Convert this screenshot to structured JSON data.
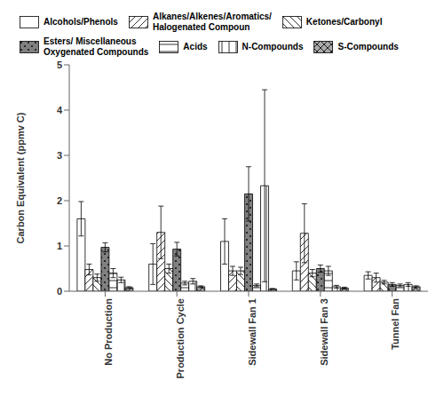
{
  "chart_data": {
    "type": "bar",
    "categories": [
      "No Production",
      "Production Cycle",
      "Sidewall Fan 1",
      "Sidewall Fan 3",
      "Tunnel Fan"
    ],
    "series": [
      {
        "name": "Alcohols/Phenols",
        "color": "white",
        "values": [
          1.6,
          0.6,
          1.1,
          0.45,
          0.35
        ],
        "errors": [
          0.38,
          0.45,
          0.5,
          0.2,
          0.08
        ]
      },
      {
        "name": "Alkanes/Alkenes/Aromatics/\nHalogenated Compoun",
        "color": "white",
        "values": [
          0.48,
          1.3,
          0.45,
          1.28,
          0.3
        ],
        "errors": [
          0.12,
          0.58,
          0.1,
          0.65,
          0.1
        ]
      },
      {
        "name": "Ketones/Carbonyl",
        "color": "white",
        "values": [
          0.3,
          0.5,
          0.45,
          0.4,
          0.2
        ],
        "errors": [
          0.08,
          0.1,
          0.08,
          0.08,
          0.04
        ]
      },
      {
        "name": "Esters/ Miscellaneous\nOxygenated Compounds",
        "color": "gray",
        "values": [
          0.97,
          0.93,
          2.15,
          0.5,
          0.15
        ],
        "errors": [
          0.1,
          0.15,
          0.6,
          0.08,
          0.04
        ]
      },
      {
        "name": "Acids",
        "color": "white",
        "values": [
          0.4,
          0.18,
          0.13,
          0.45,
          0.13
        ],
        "errors": [
          0.1,
          0.04,
          0.03,
          0.1,
          0.03
        ]
      },
      {
        "name": "N-Compounds",
        "color": "white",
        "values": [
          0.25,
          0.22,
          2.33,
          0.1,
          0.15
        ],
        "errors": [
          0.06,
          0.06,
          2.12,
          0.03,
          0.04
        ]
      },
      {
        "name": "S-Compounds",
        "color": "darkgray",
        "values": [
          0.08,
          0.1,
          0.05,
          0.07,
          0.1
        ],
        "errors": [
          0.02,
          0.02,
          0.01,
          0.02,
          0.02
        ]
      }
    ],
    "ylabel": "Carbon Equivalent (ppmv C)",
    "ylim": [
      0,
      5
    ],
    "yticks": [
      0,
      1,
      2,
      3,
      4,
      5
    ],
    "legend": "top"
  }
}
